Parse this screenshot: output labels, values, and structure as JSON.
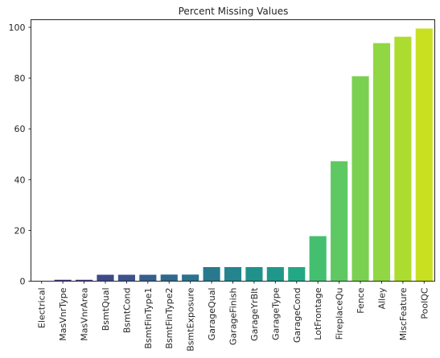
{
  "chart_data": {
    "type": "bar",
    "title": "Percent Missing Values",
    "xlabel": "",
    "ylabel": "",
    "ylim": [
      0,
      103
    ],
    "yticks": [
      0,
      20,
      40,
      60,
      80,
      100
    ],
    "grid": false,
    "categories": [
      "Electrical",
      "MasVnrType",
      "MasVnrArea",
      "BsmtQual",
      "BsmtCond",
      "BsmtFinType1",
      "BsmtFinType2",
      "BsmtExposure",
      "GarageQual",
      "GarageFinish",
      "GarageYrBlt",
      "GarageType",
      "GarageCond",
      "LotFrontage",
      "FireplaceQu",
      "Fence",
      "Alley",
      "MiscFeature",
      "PoolQC"
    ],
    "values": [
      0.07,
      0.55,
      0.55,
      2.53,
      2.53,
      2.53,
      2.6,
      2.6,
      5.55,
      5.55,
      5.55,
      5.55,
      5.55,
      17.74,
      47.26,
      80.75,
      93.77,
      96.3,
      99.52
    ],
    "colors": [
      "#472d7b",
      "#46327e",
      "#433e85",
      "#3e4989",
      "#3b528b",
      "#355f8d",
      "#31688e",
      "#2c728e",
      "#29798e",
      "#25848e",
      "#21918c",
      "#1f988b",
      "#22a884",
      "#44bf70",
      "#5ec962",
      "#7ad151",
      "#90d743",
      "#addc30",
      "#c8e020"
    ]
  }
}
